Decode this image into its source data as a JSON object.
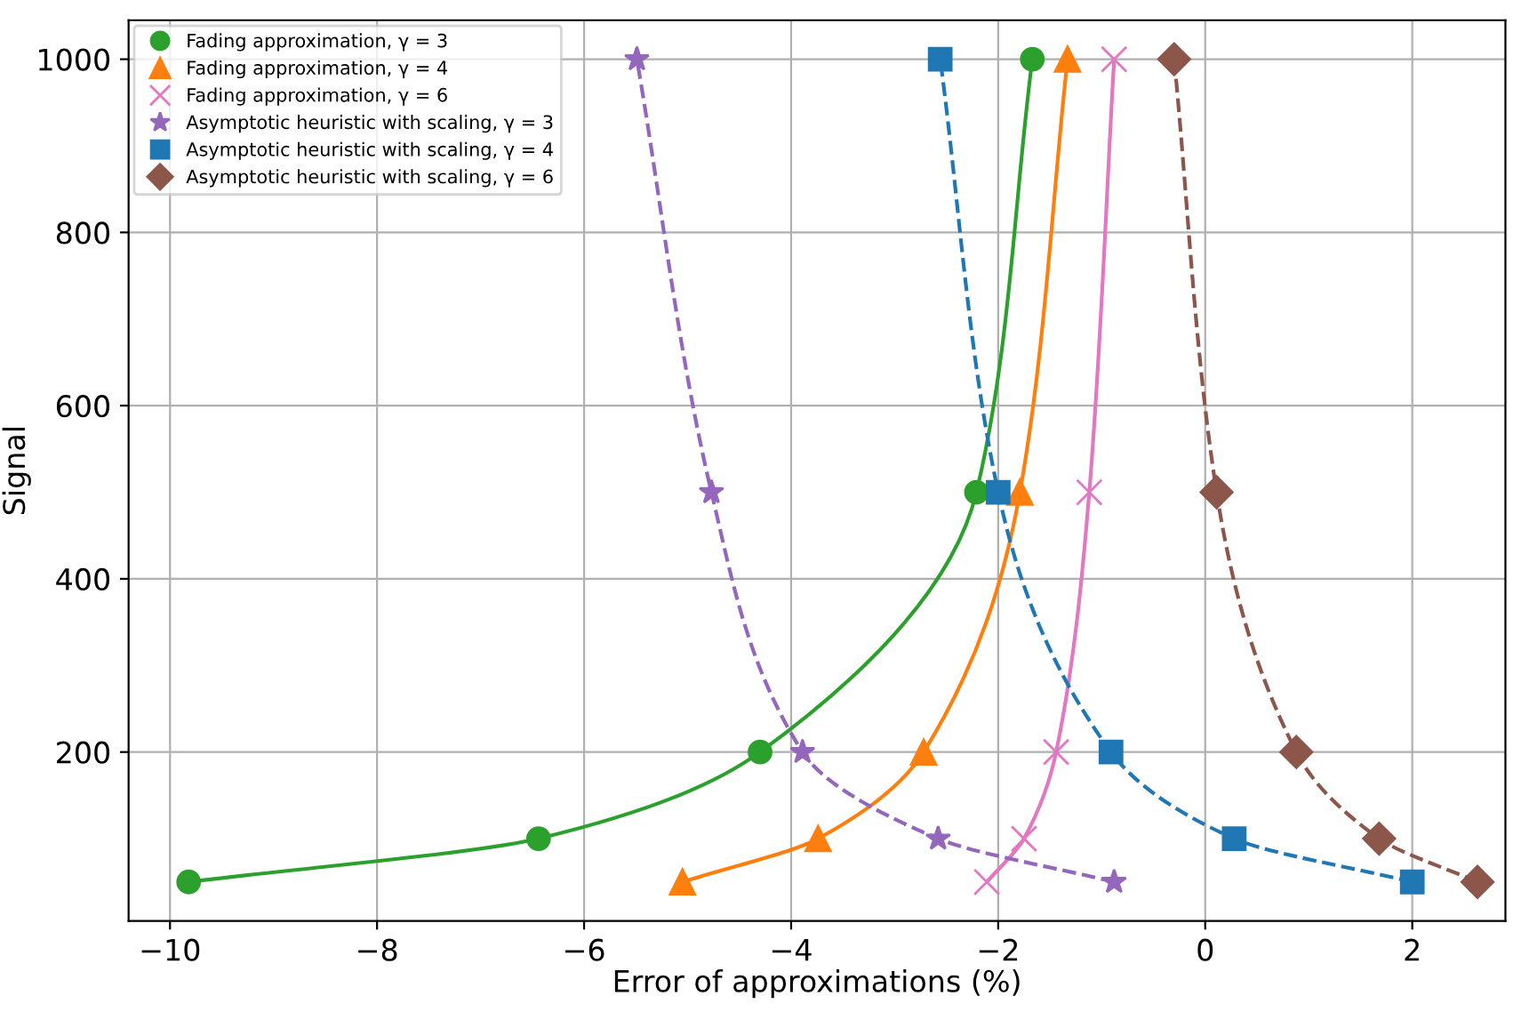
{
  "chart_data": {
    "type": "line",
    "xlabel": "Error of approximations (%)",
    "ylabel": "Signal",
    "xlim": [
      -10.4,
      2.9
    ],
    "ylim": [
      5,
      1045
    ],
    "xticks": [
      -10,
      -8,
      -6,
      -4,
      -2,
      0,
      2
    ],
    "yticks": [
      200,
      400,
      600,
      800,
      1000
    ],
    "grid": true,
    "legend": "top left",
    "series": [
      {
        "name": "Fading approximation, γ = 3",
        "color": "#2ca02c",
        "marker": "circle",
        "line_style": "solid",
        "x": [
          -9.82,
          -6.44,
          -4.3,
          -2.21,
          -1.67
        ],
        "values": [
          50,
          100,
          200,
          500,
          1000
        ]
      },
      {
        "name": "Fading approximation, γ = 4",
        "color": "#ff7f0e",
        "marker": "triangle",
        "line_style": "solid",
        "x": [
          -5.05,
          -3.74,
          -2.72,
          -1.79,
          -1.33
        ],
        "values": [
          50,
          100,
          200,
          500,
          1000
        ]
      },
      {
        "name": "Fading approximation, γ = 6",
        "color": "#e377c2",
        "marker": "cross",
        "line_style": "solid",
        "x": [
          -2.11,
          -1.75,
          -1.44,
          -1.12,
          -0.88
        ],
        "values": [
          50,
          100,
          200,
          500,
          1000
        ]
      },
      {
        "name": "Asymptotic heuristic with scaling, γ = 3",
        "color": "#9467bd",
        "marker": "star",
        "line_style": "dashed",
        "x": [
          -0.88,
          -2.58,
          -3.89,
          -4.77,
          -5.49
        ],
        "values": [
          50,
          100,
          200,
          500,
          1000
        ]
      },
      {
        "name": "Asymptotic heuristic with scaling, γ = 4",
        "color": "#1f77b4",
        "marker": "square",
        "line_style": "dashed",
        "x": [
          2.0,
          0.28,
          -0.91,
          -2.0,
          -2.56
        ],
        "values": [
          50,
          100,
          200,
          500,
          1000
        ]
      },
      {
        "name": "Asymptotic heuristic with scaling, γ = 6",
        "color": "#8c564b",
        "marker": "diamond",
        "line_style": "dashed",
        "x": [
          2.63,
          1.68,
          0.88,
          0.11,
          -0.3
        ],
        "values": [
          50,
          100,
          200,
          500,
          1000
        ]
      }
    ]
  }
}
